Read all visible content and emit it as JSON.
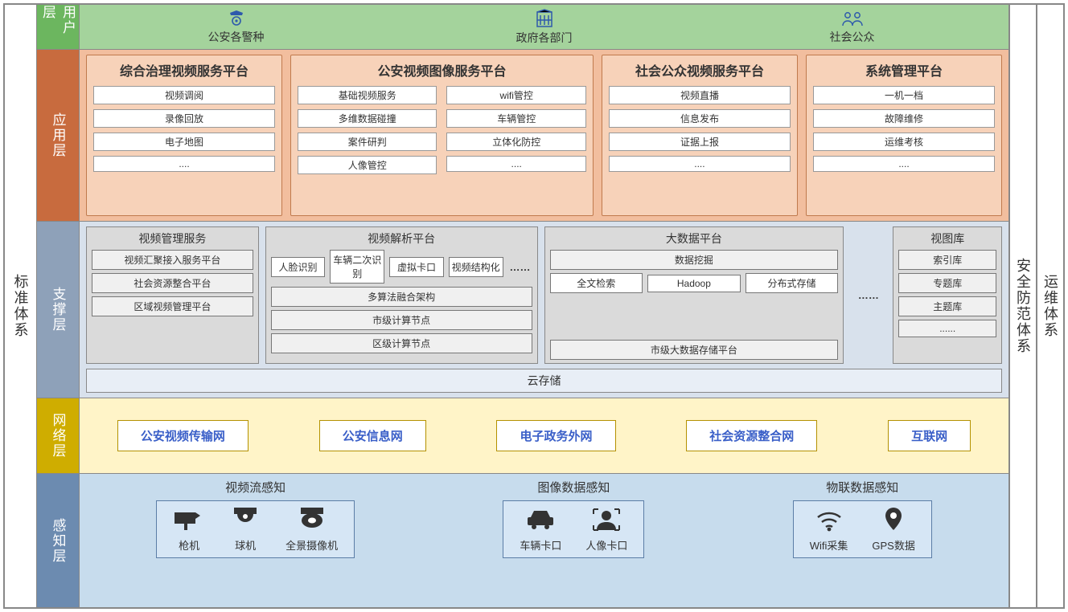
{
  "colors": {
    "user_label": "#6cb65f",
    "user_body": "#a4d39c",
    "app_label": "#c86b3e",
    "app_body": "#f2be9e",
    "app_panel": "#f7d2b9",
    "app_border": "#c07a4d",
    "supp_label": "#8ea1b9",
    "supp_body": "#d8e1ec",
    "supp_box": "#dadada",
    "net_label": "#cfad00",
    "net_body": "#fff4c8",
    "net_border": "#b49100",
    "net_text": "#3a5fc8",
    "per_label": "#6c8bb0",
    "per_body": "#c7dced",
    "per_border": "#5b7da6",
    "border": "#888888"
  },
  "left_col": "标准体系",
  "right_col_a": "安全防范体系",
  "right_col_b": "运维体系",
  "layers": {
    "user": {
      "label": "用户层",
      "items": [
        "公安各警种",
        "政府各部门",
        "社会公众"
      ]
    },
    "app": {
      "label": "应用层",
      "panels": [
        {
          "title": "综合治理视频服务平台",
          "cols": [
            [
              "视频调阅",
              "录像回放",
              "电子地图",
              "...."
            ]
          ]
        },
        {
          "title": "公安视频图像服务平台",
          "cols": [
            [
              "基础视频服务",
              "多维数据碰撞",
              "案件研判",
              "人像管控"
            ],
            [
              "wifi管控",
              "车辆管控",
              "立体化防控",
              "...."
            ]
          ]
        },
        {
          "title": "社会公众视频服务平台",
          "cols": [
            [
              "视频直播",
              "信息发布",
              "证据上报",
              "...."
            ]
          ]
        },
        {
          "title": "系统管理平台",
          "cols": [
            [
              "一机一档",
              "故障维修",
              "运维考核",
              "...."
            ]
          ]
        }
      ]
    },
    "supp": {
      "label": "支撑层",
      "boxA": {
        "title": "视频管理服务",
        "items": [
          "视频汇聚接入服务平台",
          "社会资源整合平台",
          "区域视频管理平台"
        ]
      },
      "boxB": {
        "title": "视频解析平台",
        "row": [
          "人脸识别",
          "车辆二次识别",
          "虚拟卡口",
          "视频结构化"
        ],
        "row_dots": "……",
        "bands": [
          "多算法融合架构",
          "市级计算节点",
          "区级计算节点"
        ]
      },
      "boxC": {
        "title": "大数据平台",
        "top": "数据挖掘",
        "mid": [
          "全文检索",
          "Hadoop",
          "分布式存储"
        ],
        "bottom": "市级大数据存储平台"
      },
      "dots": "……",
      "boxD": {
        "title": "视图库",
        "items": [
          "索引库",
          "专题库",
          "主题库",
          "......"
        ]
      },
      "cloud": "云存储"
    },
    "net": {
      "label": "网络层",
      "items": [
        "公安视频传输网",
        "公安信息网",
        "电子政务外网",
        "社会资源整合网",
        "互联网"
      ]
    },
    "per": {
      "label": "感知层",
      "groups": [
        {
          "title": "视频流感知",
          "items": [
            {
              "icon": "camera",
              "label": "枪机"
            },
            {
              "icon": "dome",
              "label": "球机"
            },
            {
              "icon": "pan",
              "label": "全景摄像机"
            }
          ]
        },
        {
          "title": "图像数据感知",
          "items": [
            {
              "icon": "car",
              "label": "车辆卡口"
            },
            {
              "icon": "face",
              "label": "人像卡口"
            }
          ]
        },
        {
          "title": "物联数据感知",
          "items": [
            {
              "icon": "wifi",
              "label": "Wifi采集"
            },
            {
              "icon": "gps",
              "label": "GPS数据"
            }
          ]
        }
      ]
    }
  }
}
